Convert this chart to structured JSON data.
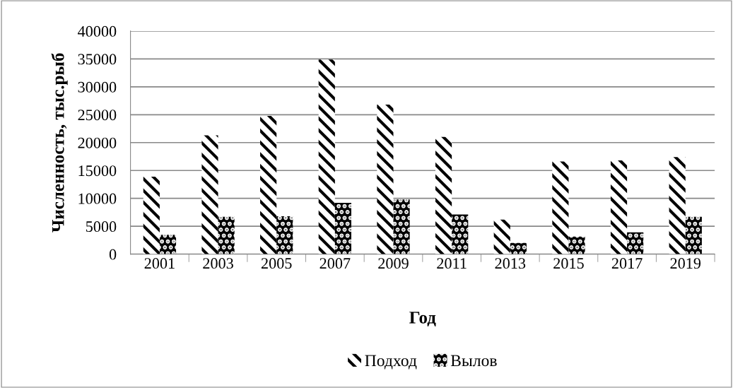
{
  "chart_data": {
    "type": "bar",
    "xlabel": "Год",
    "ylabel": "Численность, тыс.рыб",
    "categories": [
      "2001",
      "2003",
      "2005",
      "2007",
      "2009",
      "2011",
      "2013",
      "2015",
      "2017",
      "2019"
    ],
    "series": [
      {
        "name": "Подход",
        "color": "#ffffff",
        "values": [
          13900,
          21300,
          24800,
          34900,
          26800,
          21000,
          6200,
          16600,
          16800,
          17400
        ]
      },
      {
        "name": "Вылов",
        "color": "#000000",
        "values": [
          3450,
          6700,
          6800,
          9200,
          9800,
          7100,
          2000,
          3150,
          3900,
          6700
        ]
      }
    ],
    "ylim": [
      0,
      40000
    ],
    "yticks": [
      0,
      5000,
      10000,
      15000,
      20000,
      25000,
      30000,
      35000,
      40000
    ],
    "grid": "y",
    "legend": "bottom"
  }
}
